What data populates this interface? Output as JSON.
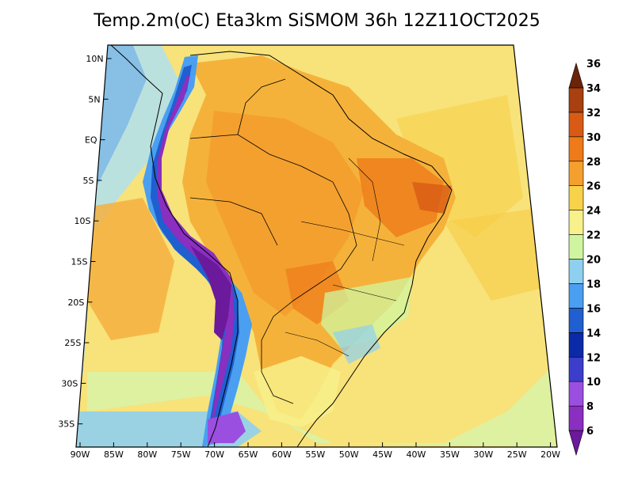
{
  "title": "Temp.2m(oC) Eta3km SiSMOM 36h 12Z11OCT2025",
  "lat_ticks": [
    "10N",
    "5N",
    "EQ",
    "5S",
    "10S",
    "15S",
    "20S",
    "25S",
    "30S",
    "35S"
  ],
  "lon_ticks": [
    "90W",
    "85W",
    "80W",
    "75W",
    "70W",
    "65W",
    "60W",
    "55W",
    "50W",
    "45W",
    "40W",
    "35W",
    "30W",
    "25W",
    "20W"
  ],
  "colorbar": {
    "labels": [
      "6",
      "8",
      "10",
      "12",
      "14",
      "16",
      "18",
      "20",
      "22",
      "24",
      "26",
      "28",
      "30",
      "32",
      "34",
      "36"
    ],
    "colors": [
      "#6a1a9a",
      "#8a2fc0",
      "#9a4fe0",
      "#3d3dcc",
      "#0b2aa8",
      "#1f5fd0",
      "#4a9ff0",
      "#8fd0f0",
      "#d0f5a0",
      "#f8f08a",
      "#f7d24a",
      "#f5a02e",
      "#ee7a1a",
      "#d85a14",
      "#a8400f",
      "#6a2408"
    ]
  }
}
